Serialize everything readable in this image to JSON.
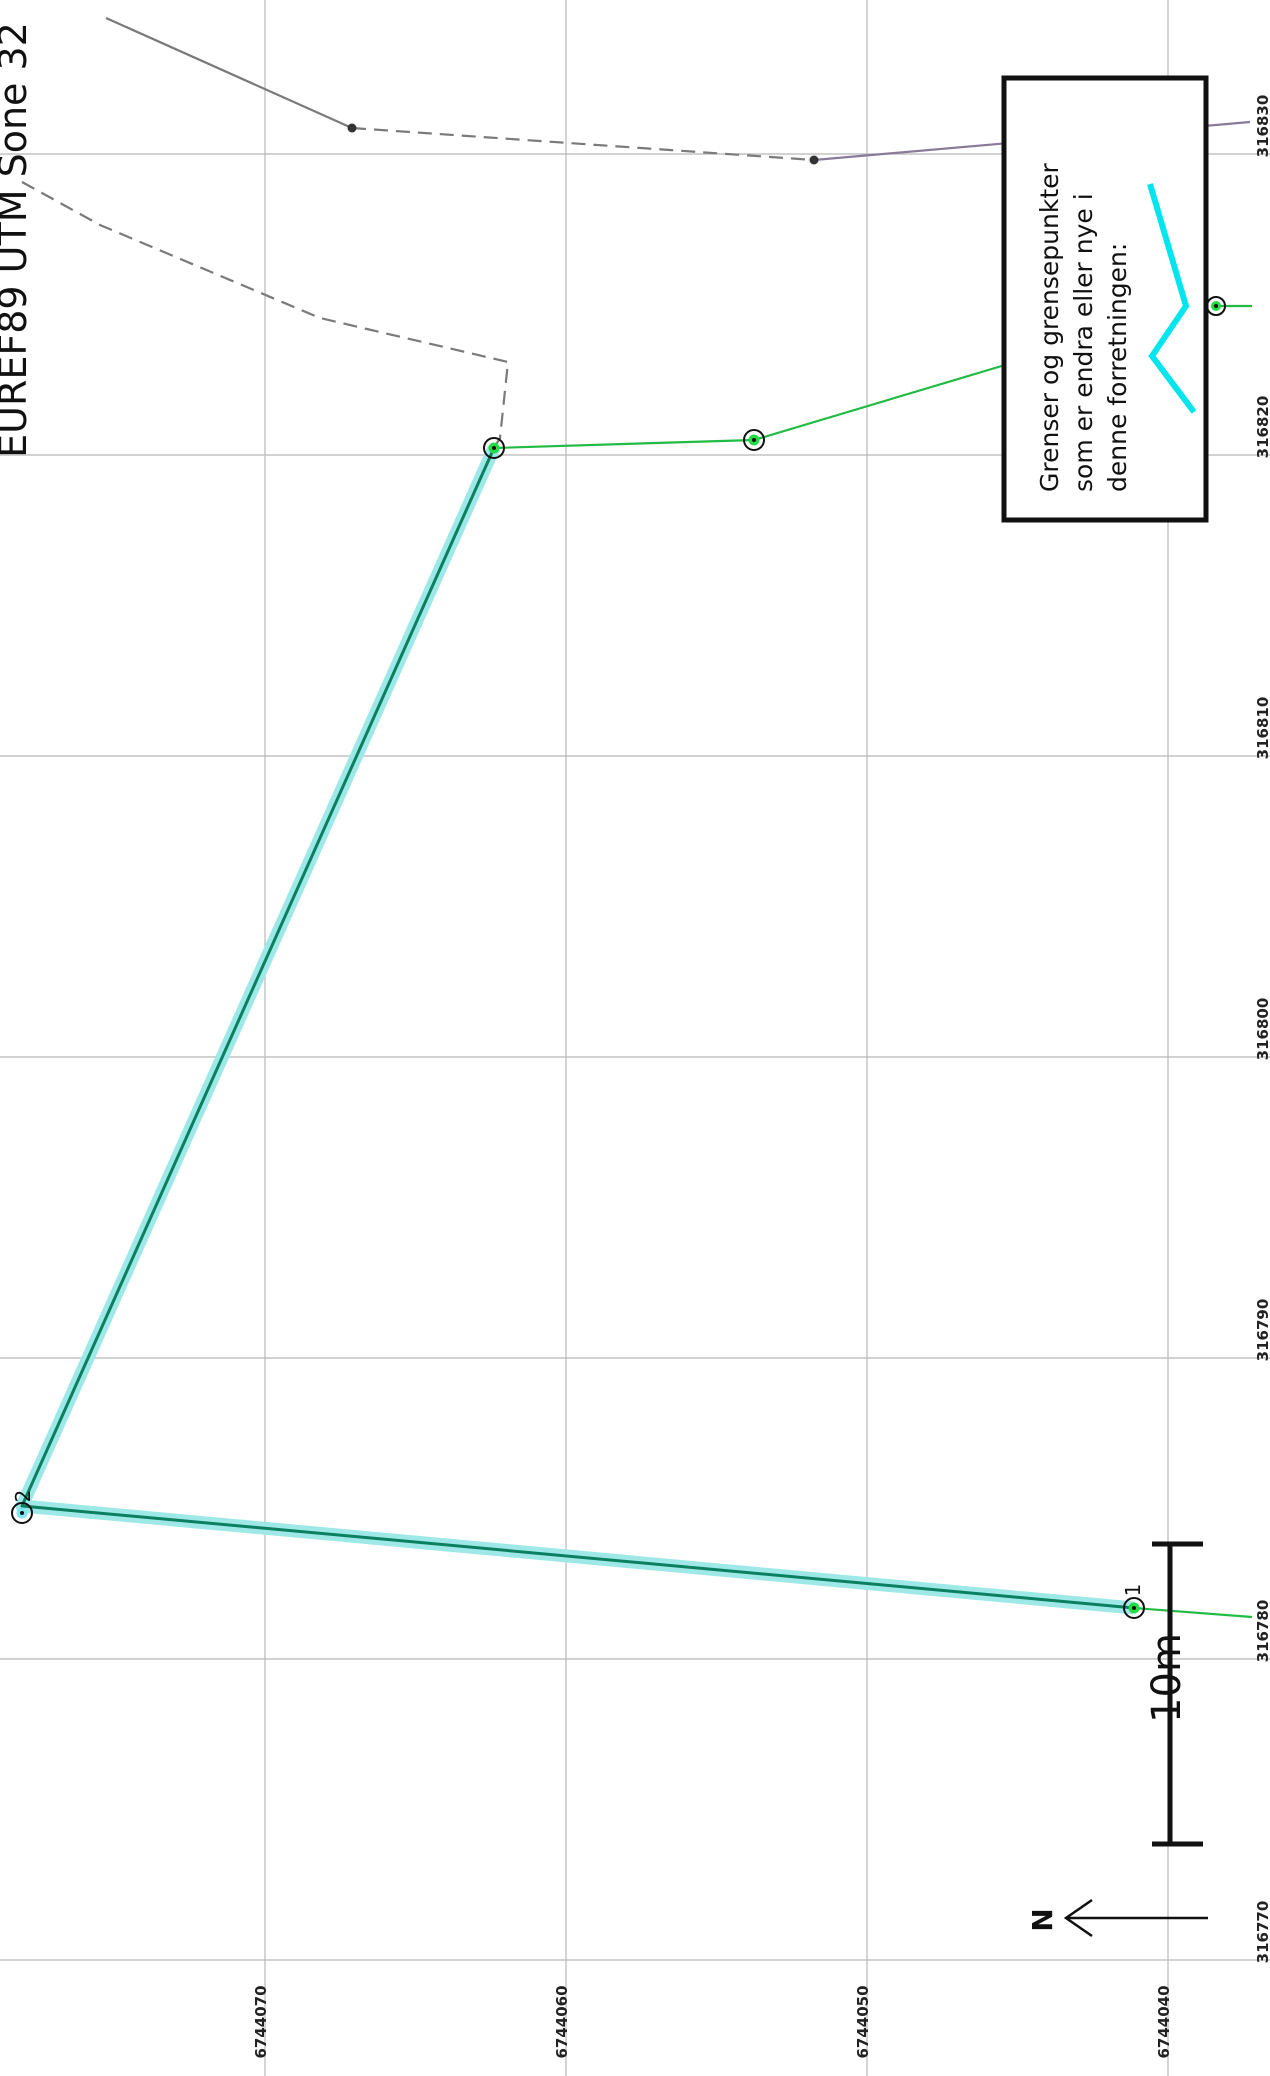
{
  "map": {
    "title": "EUREF89 UTM Sone 32",
    "easting_ticks": [
      "316770",
      "316780",
      "316790",
      "316800",
      "316810",
      "316820",
      "316830"
    ],
    "northing_ticks": [
      "6744070",
      "6744060",
      "6744050",
      "6744040"
    ],
    "colors": {
      "grid": "#b8b8b8",
      "changed_boundary": "#00c8a0",
      "changed_boundary_halo": "#9fe8e8",
      "boundary": "#22bb44",
      "existing_boundary": "#7a7a7a",
      "legend_symbol": "#00e5ee"
    },
    "legend": {
      "lines": [
        "Grenser og grensepunkter",
        "som er endra eller nye i",
        "denne forretningen:"
      ]
    },
    "scale_bar": {
      "label": "10m",
      "meters": 10
    },
    "north_arrow": {
      "label": "N",
      "icon": "north-arrow-icon"
    },
    "points": [
      {
        "label": "1",
        "easting": 316781.5,
        "northing": 6744040.1
      },
      {
        "label": "2",
        "easting": 316784.6,
        "northing": 6744076.9
      }
    ]
  }
}
